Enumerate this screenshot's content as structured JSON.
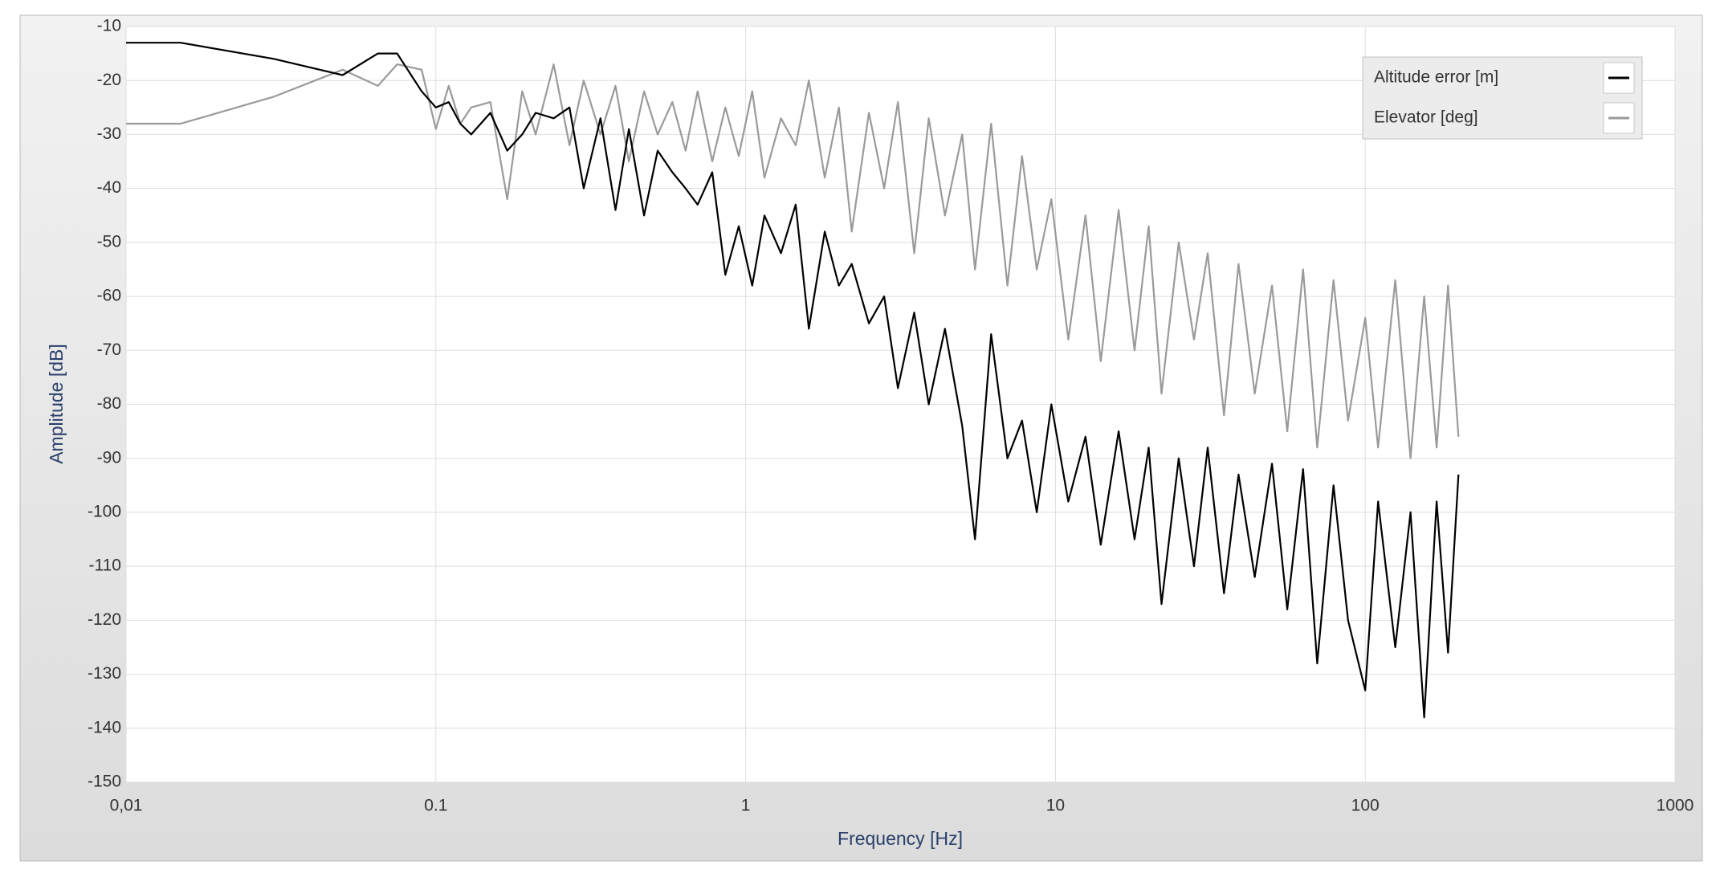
{
  "chart_data": {
    "type": "line",
    "xlabel": "Frequency [Hz]",
    "ylabel": "Amplitude [dB]",
    "xscale": "log",
    "xlim": [
      0.01,
      1000
    ],
    "xticks": [
      {
        "value": 0.01,
        "label": "0,01"
      },
      0.1,
      1,
      10,
      100,
      1000
    ],
    "ylim": [
      -150,
      -10
    ],
    "yticks": [
      -10,
      -20,
      -30,
      -40,
      -50,
      -60,
      -70,
      -80,
      -90,
      -100,
      -110,
      -120,
      -130,
      -140,
      -150
    ],
    "grid": true,
    "legend": "upper right",
    "x": [
      0.01,
      0.015,
      0.03,
      0.05,
      0.065,
      0.075,
      0.09,
      0.1,
      0.11,
      0.12,
      0.13,
      0.15,
      0.17,
      0.19,
      0.21,
      0.24,
      0.27,
      0.3,
      0.34,
      0.38,
      0.42,
      0.47,
      0.52,
      0.58,
      0.64,
      0.7,
      0.78,
      0.86,
      0.95,
      1.05,
      1.15,
      1.3,
      1.45,
      1.6,
      1.8,
      2.0,
      2.2,
      2.5,
      2.8,
      3.1,
      3.5,
      3.9,
      4.4,
      5.0,
      5.5,
      6.2,
      7.0,
      7.8,
      8.7,
      9.7,
      11,
      12.5,
      14,
      16,
      18,
      20,
      22,
      25,
      28,
      31,
      35,
      39,
      44,
      50,
      56,
      63,
      70,
      79,
      88,
      100,
      110,
      125,
      140,
      155,
      170,
      185,
      200
    ],
    "series": [
      {
        "name": "Elevator [deg]",
        "color": "#9a9a9a",
        "values": [
          -28,
          -28,
          -23,
          -18,
          -21,
          -17,
          -18,
          -29,
          -21,
          -28,
          -25,
          -24,
          -42,
          -22,
          -30,
          -17,
          -32,
          -20,
          -30,
          -21,
          -35,
          -22,
          -30,
          -24,
          -33,
          -22,
          -35,
          -25,
          -34,
          -22,
          -38,
          -27,
          -32,
          -20,
          -38,
          -25,
          -48,
          -26,
          -40,
          -24,
          -52,
          -27,
          -45,
          -30,
          -55,
          -28,
          -58,
          -34,
          -55,
          -42,
          -68,
          -45,
          -72,
          -44,
          -70,
          -47,
          -78,
          -50,
          -68,
          -52,
          -82,
          -54,
          -78,
          -58,
          -85,
          -55,
          -88,
          -57,
          -83,
          -64,
          -88,
          -57,
          -90,
          -60,
          -88,
          -58,
          -86
        ]
      },
      {
        "name": "Altitude error [m]",
        "color": "#000000",
        "values": [
          -13,
          -13,
          -16,
          -19,
          -15,
          -15,
          -22,
          -25,
          -24,
          -28,
          -30,
          -26,
          -33,
          -30,
          -26,
          -27,
          -25,
          -40,
          -27,
          -44,
          -29,
          -45,
          -33,
          -37,
          -40,
          -43,
          -37,
          -56,
          -47,
          -58,
          -45,
          -52,
          -43,
          -66,
          -48,
          -58,
          -54,
          -65,
          -60,
          -77,
          -63,
          -80,
          -66,
          -84,
          -105,
          -67,
          -90,
          -83,
          -100,
          -80,
          -98,
          -86,
          -106,
          -85,
          -105,
          -88,
          -117,
          -90,
          -110,
          -88,
          -115,
          -93,
          -112,
          -91,
          -118,
          -92,
          -128,
          -95,
          -120,
          -133,
          -98,
          -125,
          -100,
          -138,
          -98,
          -126,
          -93
        ]
      }
    ]
  }
}
